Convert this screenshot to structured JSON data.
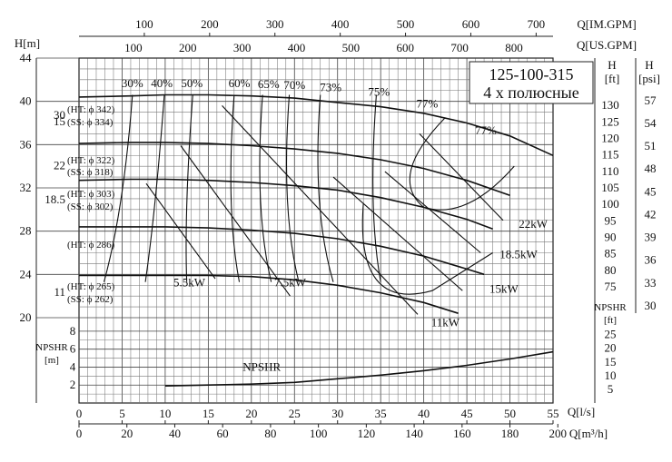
{
  "chart_data": {
    "type": "line",
    "title": "125-100-315",
    "subtitle": "4 х полюсные",
    "x_axis": {
      "label": "Q[l/s]",
      "range": [
        0,
        55
      ],
      "ticks": [
        0,
        5,
        10,
        15,
        20,
        25,
        30,
        35,
        40,
        45,
        50,
        55
      ]
    },
    "x_axis_m3h": {
      "label": "Q[m³/h]",
      "ticks": [
        0,
        20,
        40,
        60,
        80,
        100,
        120,
        140,
        160,
        180,
        200
      ]
    },
    "x_axis_usgpm": {
      "label": "Q[US.GPM]",
      "ticks": [
        100,
        200,
        300,
        400,
        500,
        600,
        700,
        800
      ]
    },
    "x_axis_imgpm": {
      "label": "Q[IM.GPM]",
      "ticks": [
        100,
        200,
        300,
        400,
        500,
        600,
        700
      ]
    },
    "y_axis_head": {
      "label": "H[m]",
      "range": [
        20,
        44
      ],
      "ticks": [
        20,
        24,
        28,
        32,
        36,
        40,
        44
      ]
    },
    "y_axis_ft": {
      "label_top": "H",
      "label_unit": "[ft]",
      "ticks": [
        75,
        80,
        85,
        90,
        95,
        100,
        105,
        110,
        115,
        120,
        125,
        130
      ]
    },
    "y_axis_psi": {
      "label_top": "H",
      "label_unit": "[psi]",
      "ticks": [
        30,
        33,
        36,
        39,
        42,
        45,
        48,
        51,
        54,
        57
      ]
    },
    "y_axis_npshr": {
      "label_top": "NPSHR",
      "label_unit": "[m]",
      "range": [
        0,
        9
      ],
      "ticks": [
        2,
        4,
        6,
        8
      ]
    },
    "y_axis_npshr_ft": {
      "label_top": "NPSHR",
      "label_unit": "[ft]",
      "ticks": [
        5,
        10,
        15,
        20,
        25
      ]
    },
    "head_curves": [
      {
        "kw": "30",
        "ht_text": "(HT: ϕ 342)",
        "ss_text": "(SS: ϕ 334)",
        "x": [
          0,
          6,
          10,
          15,
          20,
          25,
          30,
          35,
          40,
          45,
          50,
          55
        ],
        "y": [
          40.4,
          40.5,
          40.6,
          40.6,
          40.5,
          40.3,
          39.9,
          39.5,
          38.9,
          38.0,
          36.8,
          35.0
        ]
      },
      {
        "kw": "22",
        "ht_text": "(HT: ϕ 322)",
        "ss_text": "(SS: ϕ 318)",
        "x": [
          0,
          6,
          10,
          15,
          20,
          25,
          30,
          35,
          40,
          45,
          50
        ],
        "y": [
          36.1,
          36.2,
          36.2,
          36.1,
          35.9,
          35.6,
          35.2,
          34.6,
          33.8,
          32.7,
          31.3
        ]
      },
      {
        "kw": "18.5",
        "ht_text": "(HT: ϕ 303)",
        "ss_text": "(SS: ϕ 302)",
        "x": [
          0,
          6,
          10,
          15,
          20,
          25,
          30,
          35,
          40,
          45,
          48
        ],
        "y": [
          32.7,
          32.8,
          32.8,
          32.7,
          32.5,
          32.2,
          31.8,
          31.1,
          30.2,
          29.1,
          28.2
        ]
      },
      {
        "kw": "15",
        "ht_text": "(HT: ϕ 286)",
        "ss_text": "",
        "x": [
          0,
          6,
          10,
          15,
          20,
          25,
          30,
          35,
          40,
          45,
          47
        ],
        "y": [
          28.4,
          28.4,
          28.4,
          28.3,
          28.1,
          27.8,
          27.3,
          26.6,
          25.7,
          24.5,
          24.0
        ]
      },
      {
        "kw": "11",
        "ht_text": "(HT: ϕ 265)",
        "ss_text": "(SS: ϕ 262)",
        "x": [
          0,
          6,
          10,
          15,
          20,
          25,
          30,
          35,
          40,
          44
        ],
        "y": [
          23.9,
          23.9,
          23.9,
          23.9,
          23.8,
          23.5,
          23.0,
          22.3,
          21.4,
          20.4
        ]
      }
    ],
    "efficiency_labels": [
      "30%",
      "40%",
      "50%",
      "60%",
      "65%",
      "70%",
      "73%",
      "75%",
      "77%",
      "77%"
    ],
    "power_curves": [
      {
        "label": "5.5kW",
        "x": [
          7.8,
          15.8
        ],
        "y": [
          32.4,
          23.6
        ]
      },
      {
        "label": "7.5kW",
        "x": [
          11.8,
          24.5
        ],
        "y": [
          35.9,
          22.0
        ]
      },
      {
        "label": "11kW",
        "x": [
          16.6,
          39.3
        ],
        "y": [
          39.6,
          20.3
        ]
      },
      {
        "label": "15kW",
        "x": [
          29.5,
          44.5
        ],
        "y": [
          33.0,
          22.5
        ]
      },
      {
        "label": "18.5kW",
        "x": [
          35.5,
          46.6
        ],
        "y": [
          33.5,
          26.0
        ]
      },
      {
        "label": "22kW",
        "x": [
          39.5,
          49.2
        ],
        "y": [
          37.0,
          29.0
        ]
      }
    ],
    "npshr": {
      "label": "NPSHR",
      "x": [
        10,
        15,
        20,
        25,
        30,
        35,
        40,
        45,
        50,
        55
      ],
      "y": [
        1.9,
        2.0,
        2.1,
        2.3,
        2.7,
        3.1,
        3.6,
        4.2,
        4.9,
        5.7
      ]
    },
    "grid": true
  }
}
